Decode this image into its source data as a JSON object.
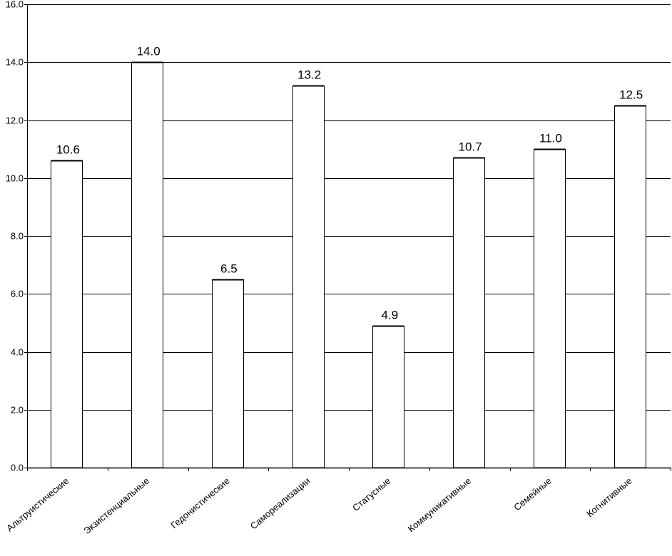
{
  "chart_data": {
    "type": "bar",
    "title": "",
    "xlabel": "",
    "ylabel": "",
    "categories": [
      "Альтруистические",
      "Экзистенциальные",
      "Гедонистические",
      "Самореализации",
      "Статусные",
      "Коммуникативные",
      "Семейные",
      "Когнитивные"
    ],
    "values": [
      10.6,
      14.0,
      6.5,
      13.2,
      4.9,
      10.7,
      11.0,
      12.5
    ],
    "data_labels": [
      "10.6",
      "14.0",
      "6.5",
      "13.2",
      "4.9",
      "10.7",
      "11.0",
      "12.5"
    ],
    "ylim": [
      0,
      16
    ],
    "y_ticks": [
      "0.0",
      "2.0",
      "4.0",
      "6.0",
      "8.0",
      "10.0",
      "12.0",
      "14.0",
      "16.0"
    ],
    "grid": true,
    "legend": "none",
    "colors": {
      "bar_fill": "#ffffff",
      "bar_stroke": "#000000",
      "grid": "#000000",
      "axis": "#000000"
    }
  }
}
